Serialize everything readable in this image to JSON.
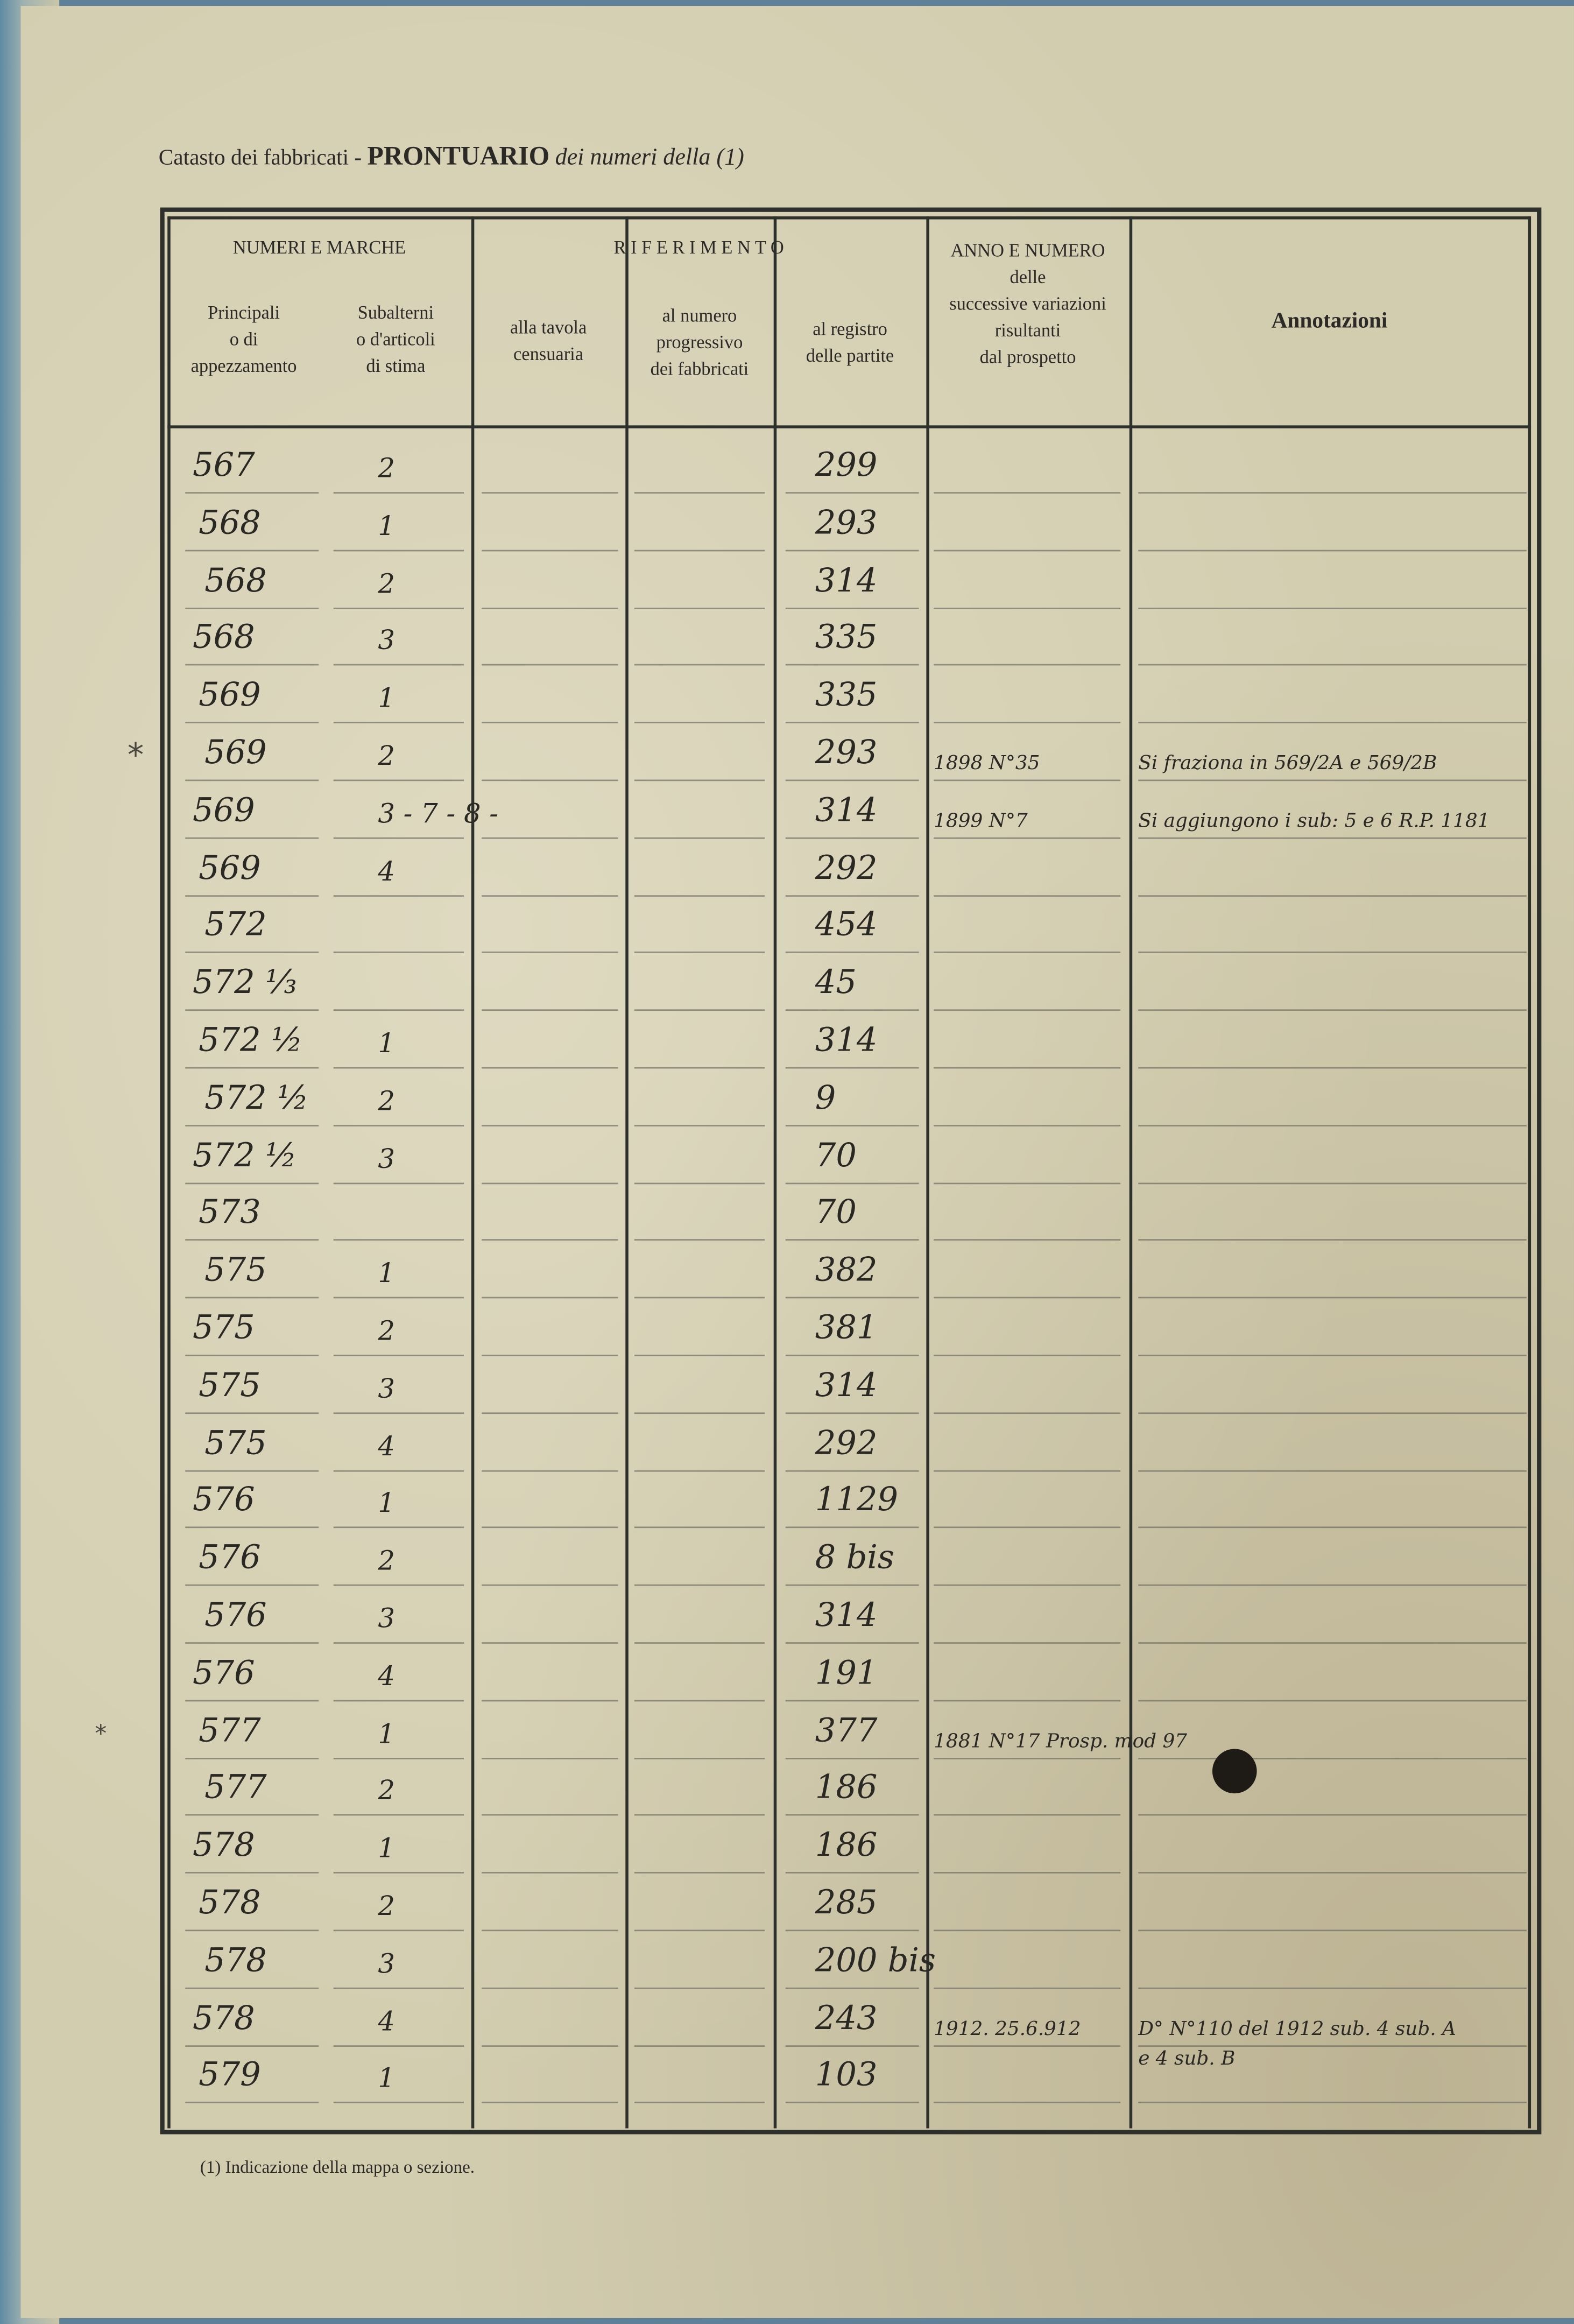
{
  "form": {
    "title_prefix": "Catasto dei fabbricati -",
    "title_main": "PRONTUARIO",
    "title_suffix": "dei numeri della (1)",
    "footnote": "(1) Indicazione della mappa o sezione."
  },
  "headers": {
    "numeri_e_marche": "NUMERI E MARCHE",
    "principali": "Principali\no di\nappezzamento",
    "subalterni": "Subalterni\no d'articoli\ndi stima",
    "riferimento": "R I F E R I M E N T O",
    "tavola": "alla tavola\ncensuaria",
    "progressivo": "al numero\nprogressivo\ndei fabbricati",
    "registro": "al registro\ndelle partite",
    "anno_numero": "ANNO E NUMERO\ndelle\nsuccessive variazioni\nrisultanti\ndal prospetto",
    "annotazioni": "Annotazioni"
  },
  "rows": [
    {
      "principale": "567",
      "subalterno": "2",
      "registro": "299",
      "variazione": "",
      "annotazione": ""
    },
    {
      "principale": "568",
      "subalterno": "1",
      "registro": "293",
      "variazione": "",
      "annotazione": ""
    },
    {
      "principale": "568",
      "subalterno": "2",
      "registro": "314",
      "variazione": "",
      "annotazione": ""
    },
    {
      "principale": "568",
      "subalterno": "3",
      "registro": "335",
      "variazione": "",
      "annotazione": ""
    },
    {
      "principale": "569",
      "subalterno": "1",
      "registro": "335",
      "variazione": "",
      "annotazione": ""
    },
    {
      "principale": "569",
      "subalterno": "2",
      "registro": "293",
      "variazione": "1898 N°35",
      "annotazione": "Si fraziona in 569/2A e 569/2B"
    },
    {
      "principale": "569",
      "subalterno": "3 - 7 - 8 -",
      "registro": "314",
      "variazione": "1899 N°7",
      "annotazione": "Si aggiungono i sub: 5 e 6   R.P. 1181"
    },
    {
      "principale": "569",
      "subalterno": "4",
      "registro": "292",
      "variazione": "",
      "annotazione": ""
    },
    {
      "principale": "572",
      "subalterno": "",
      "registro": "454",
      "variazione": "",
      "annotazione": ""
    },
    {
      "principale": "572 ⅓",
      "subalterno": "",
      "registro": "45",
      "variazione": "",
      "annotazione": ""
    },
    {
      "principale": "572 ½",
      "subalterno": "1",
      "registro": "314",
      "variazione": "",
      "annotazione": ""
    },
    {
      "principale": "572 ½",
      "subalterno": "2",
      "registro": "9",
      "variazione": "",
      "annotazione": ""
    },
    {
      "principale": "572 ½",
      "subalterno": "3",
      "registro": "70",
      "variazione": "",
      "annotazione": ""
    },
    {
      "principale": "573",
      "subalterno": "",
      "registro": "70",
      "variazione": "",
      "annotazione": ""
    },
    {
      "principale": "575",
      "subalterno": "1",
      "registro": "382",
      "variazione": "",
      "annotazione": ""
    },
    {
      "principale": "575",
      "subalterno": "2",
      "registro": "381",
      "variazione": "",
      "annotazione": ""
    },
    {
      "principale": "575",
      "subalterno": "3",
      "registro": "314",
      "variazione": "",
      "annotazione": ""
    },
    {
      "principale": "575",
      "subalterno": "4",
      "registro": "292",
      "variazione": "",
      "annotazione": ""
    },
    {
      "principale": "576",
      "subalterno": "1",
      "registro": "1129",
      "variazione": "",
      "annotazione": ""
    },
    {
      "principale": "576",
      "subalterno": "2",
      "registro": "8 bis",
      "variazione": "",
      "annotazione": ""
    },
    {
      "principale": "576",
      "subalterno": "3",
      "registro": "314",
      "variazione": "",
      "annotazione": ""
    },
    {
      "principale": "576",
      "subalterno": "4",
      "registro": "191",
      "variazione": "",
      "annotazione": ""
    },
    {
      "principale": "577",
      "subalterno": "1",
      "registro": "377",
      "variazione": "1881 N°17 Prosp. mod 97",
      "annotazione": ""
    },
    {
      "principale": "577",
      "subalterno": "2",
      "registro": "186",
      "variazione": "",
      "annotazione": ""
    },
    {
      "principale": "578",
      "subalterno": "1",
      "registro": "186",
      "variazione": "",
      "annotazione": ""
    },
    {
      "principale": "578",
      "subalterno": "2",
      "registro": "285",
      "variazione": "",
      "annotazione": ""
    },
    {
      "principale": "578",
      "subalterno": "3",
      "registro": "200 bis",
      "variazione": "",
      "annotazione": ""
    },
    {
      "principale": "578",
      "subalterno": "4",
      "registro": "243",
      "variazione": "1912. 25.6.912",
      "annotazione": "D° N°110 del 1912 sub. 4 sub. A",
      "annotazione2": "e 4 sub. B"
    },
    {
      "principale": "579",
      "subalterno": "1",
      "registro": "103",
      "variazione": "",
      "annotazione": ""
    }
  ],
  "margin_marks": [
    "*",
    "*"
  ]
}
